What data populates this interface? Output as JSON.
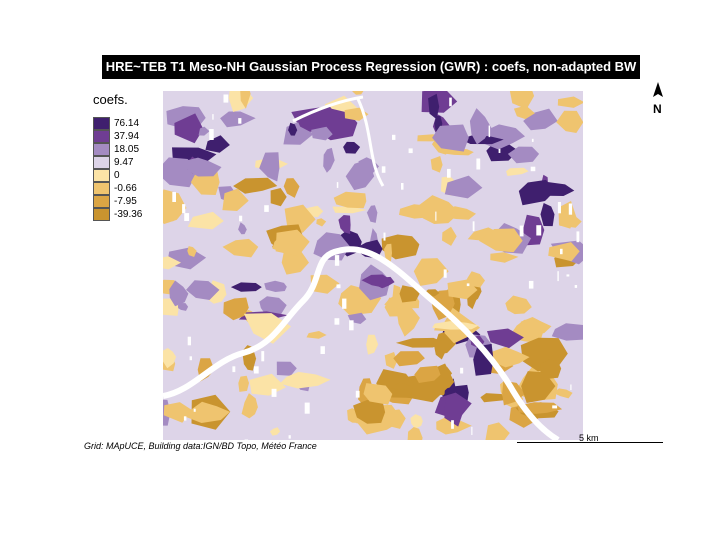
{
  "map": {
    "title": "HRE~TEB T1 Meso-NH Gaussian Process Regression (GWR) : coefs, non-adapted BW",
    "north_label": "N",
    "scale_label": "5 km",
    "credits": "Grid: MApUCE, Building data:IGN/BD Topo, Météo France",
    "background_class_color": "#ddd4e8",
    "river_color": "#ffffff"
  },
  "legend": {
    "title": "coefs.",
    "items": [
      {
        "label": "76.14",
        "color": "#3f1f6e"
      },
      {
        "label": "37.94",
        "color": "#6f3d93"
      },
      {
        "label": "18.05",
        "color": "#a48bc2"
      },
      {
        "label": "9.47",
        "color": "#ddd4e8"
      },
      {
        "label": "0",
        "color": "#fbe3a6"
      },
      {
        "label": "-0.66",
        "color": "#efc46f"
      },
      {
        "label": "-7.95",
        "color": "#dba544"
      },
      {
        "label": "-39.36",
        "color": "#c9942f"
      }
    ]
  }
}
